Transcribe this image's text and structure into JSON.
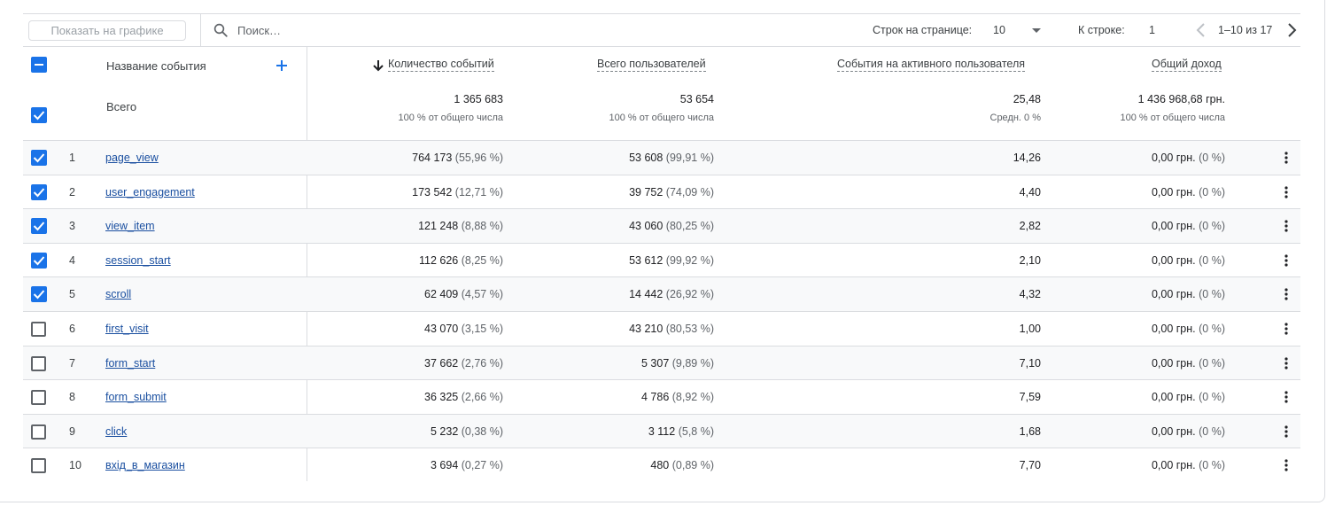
{
  "toolbar": {
    "show_on_chart_label": "Показать на графике",
    "search_placeholder": "Поиск…",
    "rows_per_page_label": "Строк на странице:",
    "rows_per_page_value": "10",
    "goto_row_label": "К строке:",
    "goto_row_value": "1",
    "pagination_text": "1–10 из 17"
  },
  "header": {
    "event_name": "Название события",
    "col_events": "Количество событий",
    "col_users": "Всего пользователей",
    "col_per_user": "События на активного пользователя",
    "col_revenue": "Общий доход"
  },
  "totals": {
    "label": "Всего",
    "events": "1 365 683",
    "events_sub": "100 % от общего числа",
    "users": "53 654",
    "users_sub": "100 % от общего числа",
    "per_user": "25,48",
    "per_user_sub": "Средн. 0 %",
    "revenue": "1 436 968,68 грн.",
    "revenue_sub": "100 % от общего числа"
  },
  "rows": [
    {
      "idx": "1",
      "checked": true,
      "name": "page_view",
      "events": "764 173",
      "events_pct": "(55,96 %)",
      "users": "53 608",
      "users_pct": "(99,91 %)",
      "per_user": "14,26",
      "revenue": "0,00 грн.",
      "revenue_pct": "(0 %)"
    },
    {
      "idx": "2",
      "checked": true,
      "name": "user_engagement",
      "events": "173 542",
      "events_pct": "(12,71 %)",
      "users": "39 752",
      "users_pct": "(74,09 %)",
      "per_user": "4,40",
      "revenue": "0,00 грн.",
      "revenue_pct": "(0 %)"
    },
    {
      "idx": "3",
      "checked": true,
      "name": "view_item",
      "events": "121 248",
      "events_pct": "(8,88 %)",
      "users": "43 060",
      "users_pct": "(80,25 %)",
      "per_user": "2,82",
      "revenue": "0,00 грн.",
      "revenue_pct": "(0 %)"
    },
    {
      "idx": "4",
      "checked": true,
      "name": "session_start",
      "events": "112 626",
      "events_pct": "(8,25 %)",
      "users": "53 612",
      "users_pct": "(99,92 %)",
      "per_user": "2,10",
      "revenue": "0,00 грн.",
      "revenue_pct": "(0 %)"
    },
    {
      "idx": "5",
      "checked": true,
      "name": "scroll",
      "events": "62 409",
      "events_pct": "(4,57 %)",
      "users": "14 442",
      "users_pct": "(26,92 %)",
      "per_user": "4,32",
      "revenue": "0,00 грн.",
      "revenue_pct": "(0 %)"
    },
    {
      "idx": "6",
      "checked": false,
      "name": "first_visit",
      "events": "43 070",
      "events_pct": "(3,15 %)",
      "users": "43 210",
      "users_pct": "(80,53 %)",
      "per_user": "1,00",
      "revenue": "0,00 грн.",
      "revenue_pct": "(0 %)"
    },
    {
      "idx": "7",
      "checked": false,
      "name": "form_start",
      "events": "37 662",
      "events_pct": "(2,76 %)",
      "users": "5 307",
      "users_pct": "(9,89 %)",
      "per_user": "7,10",
      "revenue": "0,00 грн.",
      "revenue_pct": "(0 %)"
    },
    {
      "idx": "8",
      "checked": false,
      "name": "form_submit",
      "events": "36 325",
      "events_pct": "(2,66 %)",
      "users": "4 786",
      "users_pct": "(8,92 %)",
      "per_user": "7,59",
      "revenue": "0,00 грн.",
      "revenue_pct": "(0 %)"
    },
    {
      "idx": "9",
      "checked": false,
      "name": "click",
      "events": "5 232",
      "events_pct": "(0,38 %)",
      "users": "3 112",
      "users_pct": "(5,8 %)",
      "per_user": "1,68",
      "revenue": "0,00 грн.",
      "revenue_pct": "(0 %)"
    },
    {
      "idx": "10",
      "checked": false,
      "name": "вхід_в_магазин",
      "events": "3 694",
      "events_pct": "(0,27 %)",
      "users": "480",
      "users_pct": "(0,89 %)",
      "per_user": "7,70",
      "revenue": "0,00 грн.",
      "revenue_pct": "(0 %)"
    }
  ],
  "colors": {
    "accent": "#1a73e8",
    "link": "#1a4fa0",
    "border": "#dadce0",
    "row_alt": "#f8f9fa"
  },
  "icons": {
    "search": "search-icon",
    "add_dimension": "plus-icon",
    "sort": "arrow-down-icon",
    "prev": "chevron-left-icon",
    "next": "chevron-right-icon",
    "row_menu": "more-vert-icon"
  }
}
